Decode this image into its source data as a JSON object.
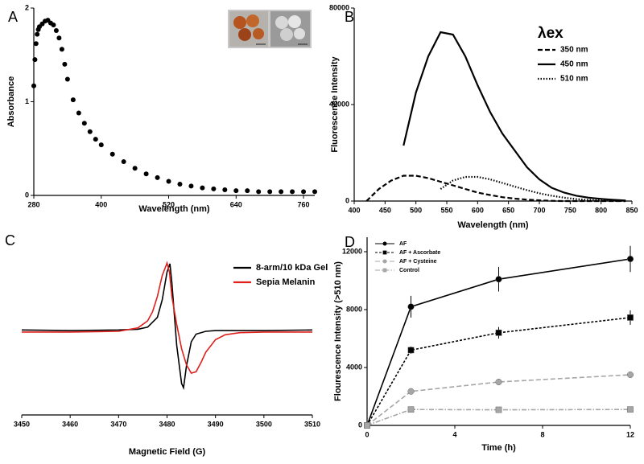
{
  "chart_data": [
    {
      "type": "scatter",
      "panel_label": "A",
      "x_label": "Wavelength (nm)",
      "y_label": "Absorbance",
      "x": [
        280,
        282,
        284,
        286,
        288,
        290,
        295,
        300,
        305,
        310,
        315,
        320,
        325,
        330,
        335,
        340,
        350,
        360,
        370,
        380,
        390,
        400,
        420,
        440,
        460,
        480,
        500,
        520,
        540,
        560,
        580,
        600,
        620,
        640,
        660,
        680,
        700,
        720,
        740,
        760,
        780
      ],
      "values": [
        1.17,
        1.45,
        1.62,
        1.72,
        1.77,
        1.8,
        1.83,
        1.86,
        1.87,
        1.84,
        1.82,
        1.76,
        1.68,
        1.56,
        1.4,
        1.24,
        1.02,
        0.88,
        0.77,
        0.68,
        0.6,
        0.54,
        0.44,
        0.36,
        0.29,
        0.23,
        0.19,
        0.15,
        0.12,
        0.1,
        0.08,
        0.07,
        0.06,
        0.05,
        0.05,
        0.04,
        0.04,
        0.04,
        0.04,
        0.04,
        0.04
      ],
      "color": "#000000",
      "xlim": [
        280,
        780
      ],
      "ylim": [
        0,
        2
      ],
      "xticks": [
        280,
        400,
        520,
        640,
        760
      ],
      "yticks": [
        0,
        1,
        2
      ]
    },
    {
      "type": "line",
      "panel_label": "B",
      "x_label": "Wavelength (nm)",
      "y_label": "Fluorescence Intensity",
      "legend_title": "λex",
      "legend": "top-right",
      "x": [
        420,
        440,
        460,
        480,
        500,
        520,
        540,
        560,
        580,
        600,
        620,
        640,
        660,
        680,
        700,
        720,
        740,
        760,
        780,
        800,
        820,
        840
      ],
      "series": [
        {
          "name": "350 nm",
          "color": "#000000",
          "dash": "dashed",
          "values": [
            0,
            5000,
            8500,
            10500,
            10500,
            9500,
            8000,
            6500,
            5000,
            3500,
            2500,
            1600,
            1000,
            600,
            300,
            100,
            0,
            0,
            0,
            0,
            0,
            0
          ]
        },
        {
          "name": "450 nm",
          "color": "#000000",
          "dash": "solid",
          "values": [
            null,
            null,
            null,
            23000,
            45000,
            60000,
            70000,
            69000,
            60000,
            48000,
            37000,
            28000,
            21000,
            14000,
            9000,
            5500,
            3500,
            2200,
            1400,
            900,
            500,
            200
          ]
        },
        {
          "name": "510 nm",
          "color": "#000000",
          "dash": "dotted",
          "values": [
            null,
            null,
            null,
            null,
            null,
            null,
            5000,
            8500,
            10000,
            10000,
            9000,
            7500,
            6000,
            4500,
            3200,
            2200,
            1400,
            800,
            500,
            300,
            100,
            0
          ]
        }
      ],
      "xlim": [
        400,
        850
      ],
      "ylim": [
        0,
        80000
      ],
      "xticks": [
        400,
        450,
        500,
        550,
        600,
        650,
        700,
        750,
        800,
        850
      ],
      "yticks": [
        0,
        40000,
        80000
      ]
    },
    {
      "type": "line",
      "panel_label": "C",
      "x_label": "Magnetic Field (G)",
      "legend": "top-right",
      "series": [
        {
          "name": "8-arm/10 kDa Gel",
          "color": "#000000",
          "dash": "solid",
          "x": [
            3450,
            3460,
            3470,
            3474,
            3476,
            3478,
            3479,
            3480,
            3480.6,
            3481,
            3482,
            3483,
            3483.4,
            3484,
            3485,
            3486,
            3488,
            3490,
            3500,
            3510
          ],
          "values": [
            0.02,
            0.01,
            0.02,
            0.03,
            0.06,
            0.2,
            0.45,
            0.85,
            0.97,
            0.7,
            -0.2,
            -0.75,
            -0.81,
            -0.5,
            -0.15,
            -0.04,
            0.0,
            0.01,
            0.01,
            0.02
          ]
        },
        {
          "name": "Sepia Melanin",
          "color": "#e0201c",
          "dash": "solid",
          "x": [
            3450,
            3460,
            3470,
            3474,
            3476,
            3477,
            3478,
            3479,
            3480,
            3480.5,
            3481,
            3482,
            3483,
            3484,
            3485,
            3486,
            3487,
            3488,
            3490,
            3492,
            3495,
            3500,
            3510
          ],
          "values": [
            -0.01,
            -0.01,
            0,
            0.05,
            0.15,
            0.28,
            0.5,
            0.8,
            0.98,
            0.85,
            0.5,
            0.1,
            -0.25,
            -0.48,
            -0.6,
            -0.58,
            -0.45,
            -0.3,
            -0.12,
            -0.05,
            -0.02,
            -0.01,
            -0.01
          ]
        }
      ],
      "xlim": [
        3450,
        3510
      ],
      "ylim": [
        -1.2,
        1.2
      ],
      "xticks": [
        3450,
        3460,
        3470,
        3480,
        3490,
        3500,
        3510
      ]
    },
    {
      "type": "line",
      "panel_label": "D",
      "x_label": "Time (h)",
      "y_label": "Flourescence Intensity (>510 nm)",
      "legend": "top-left",
      "x": [
        0,
        2,
        6,
        12
      ],
      "series": [
        {
          "name": "AF",
          "color": "#000000",
          "dash": "solid",
          "marker": "circle",
          "values": [
            0,
            8200,
            10100,
            11500
          ],
          "errors": [
            0,
            750,
            850,
            900
          ]
        },
        {
          "name": "AF + Ascorbate",
          "color": "#000000",
          "dash": "shortdash",
          "marker": "square",
          "values": [
            0,
            5200,
            6400,
            7450
          ],
          "errors": [
            0,
            250,
            400,
            500
          ]
        },
        {
          "name": "AF + Cysteine",
          "color": "#a6a6a6",
          "dash": "dashed",
          "marker": "circle",
          "values": [
            0,
            2350,
            3000,
            3500
          ]
        },
        {
          "name": "Control",
          "color": "#a6a6a6",
          "dash": "dashdot",
          "marker": "square",
          "values": [
            0,
            1100,
            1080,
            1100
          ]
        }
      ],
      "xlim": [
        0,
        12
      ],
      "ylim": [
        0,
        13000
      ],
      "xticks": [
        0,
        4,
        8,
        12
      ],
      "yticks": [
        0,
        4000,
        8000,
        12000
      ]
    }
  ]
}
